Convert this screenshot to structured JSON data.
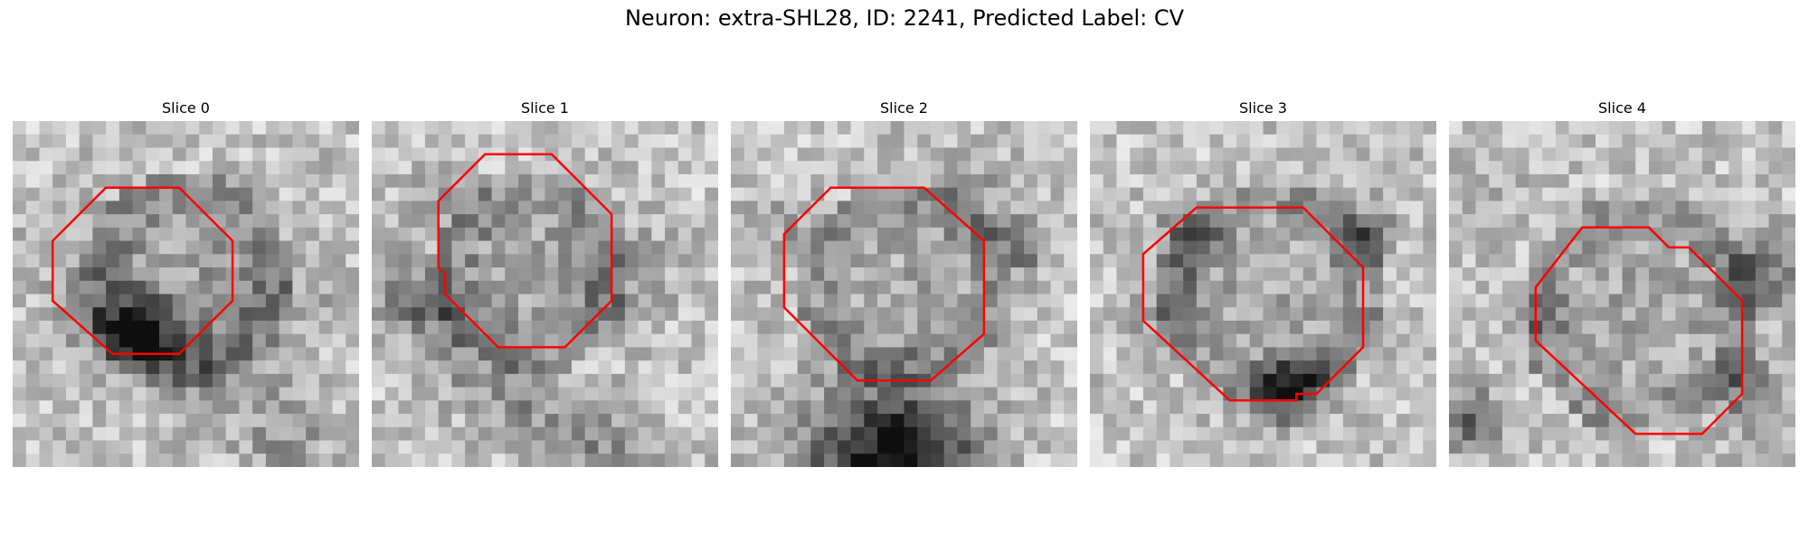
{
  "figure": {
    "title": "Neuron: extra-SHL28, ID: 2241, Predicted Label: CV"
  },
  "slices": [
    {
      "title": "Slice 0"
    },
    {
      "title": "Slice 1"
    },
    {
      "title": "Slice 2"
    },
    {
      "title": "Slice 3"
    },
    {
      "title": "Slice 4"
    }
  ],
  "colors": {
    "outline": "#ff0000",
    "background": "#ffffff"
  }
}
